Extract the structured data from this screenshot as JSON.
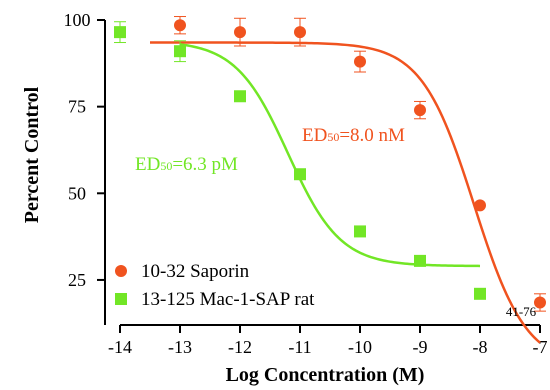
{
  "chart_data": {
    "type": "scatter",
    "xlabel": "Log Concentration (M)",
    "ylabel": "Percent Control",
    "xlim": [
      -14,
      -7
    ],
    "ylim": [
      12,
      100
    ],
    "x_ticks": [
      -14,
      -13,
      -12,
      -11,
      -10,
      -9,
      -8,
      -7
    ],
    "y_ticks": [
      25,
      50,
      75,
      100
    ],
    "grid": false,
    "legend_position": "bottom-left",
    "series": [
      {
        "name": "10-32 Saporin",
        "marker": "circle",
        "color": "#f0531f",
        "x": [
          -13,
          -12,
          -11,
          -10,
          -9,
          -8,
          -7
        ],
        "y": [
          98.5,
          96.5,
          96.5,
          88,
          74,
          46.5,
          18.5
        ],
        "err": [
          2.5,
          4,
          4,
          3,
          2.5,
          0,
          2.5
        ],
        "fit": {
          "top": 93.5,
          "bottom": 0,
          "log_ec50": -8.1,
          "hill": 1.0,
          "x_range": [
            -13.5,
            -7.0
          ]
        }
      },
      {
        "name": "13-125 Mac-1-SAP rat",
        "marker": "square",
        "color": "#72e626",
        "x": [
          -14,
          -13,
          -12,
          -11,
          -10,
          -9,
          -8
        ],
        "y": [
          96.5,
          91,
          78,
          55.5,
          39,
          30.5,
          21
        ],
        "err": [
          3,
          3,
          0,
          0,
          0,
          0,
          0
        ],
        "fit": {
          "top": 94,
          "bottom": 29,
          "log_ec50": -11.2,
          "hill": 1.0,
          "x_range": [
            -13.0,
            -8.0
          ]
        }
      }
    ],
    "annotations": [
      {
        "series": 0,
        "prefix": "ED",
        "sub": "50",
        "suffix": "=8.0 nM"
      },
      {
        "series": 1,
        "prefix": "ED",
        "sub": "50",
        "suffix": "=6.3 pM"
      }
    ],
    "figure_code": "41-76"
  }
}
